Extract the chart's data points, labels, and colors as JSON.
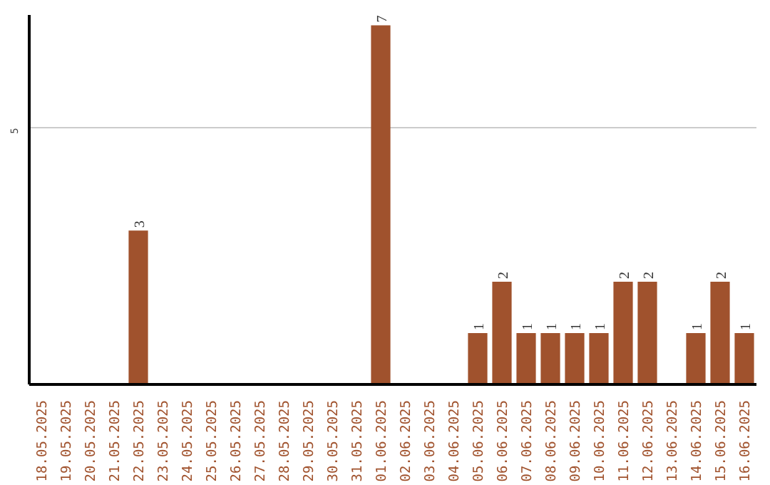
{
  "chart_data": {
    "type": "bar",
    "categories": [
      "18.05.2025",
      "19.05.2025",
      "20.05.2025",
      "21.05.2025",
      "22.05.2025",
      "23.05.2025",
      "24.05.2025",
      "25.05.2025",
      "26.05.2025",
      "27.05.2025",
      "28.05.2025",
      "29.05.2025",
      "30.05.2025",
      "31.05.2025",
      "01.06.2025",
      "02.06.2025",
      "03.06.2025",
      "04.06.2025",
      "05.06.2025",
      "06.06.2025",
      "07.06.2025",
      "08.06.2025",
      "09.06.2025",
      "10.06.2025",
      "11.06.2025",
      "12.06.2025",
      "13.06.2025",
      "14.06.2025",
      "15.06.2025",
      "16.06.2025"
    ],
    "values": [
      0,
      0,
      0,
      0,
      3,
      0,
      0,
      0,
      0,
      0,
      0,
      0,
      0,
      0,
      7,
      0,
      0,
      0,
      1,
      2,
      1,
      1,
      1,
      1,
      2,
      2,
      0,
      1,
      2,
      1
    ],
    "value_labels": [
      null,
      null,
      null,
      null,
      "3",
      null,
      null,
      null,
      null,
      null,
      null,
      null,
      null,
      null,
      "7",
      null,
      null,
      null,
      "1",
      "2",
      "1",
      "1",
      "1",
      "1",
      "2",
      "2",
      null,
      "1",
      "2",
      "1"
    ],
    "color": "#a0522d",
    "ylim": [
      0,
      7.2
    ],
    "yticks": [
      5
    ],
    "grid": "y"
  }
}
